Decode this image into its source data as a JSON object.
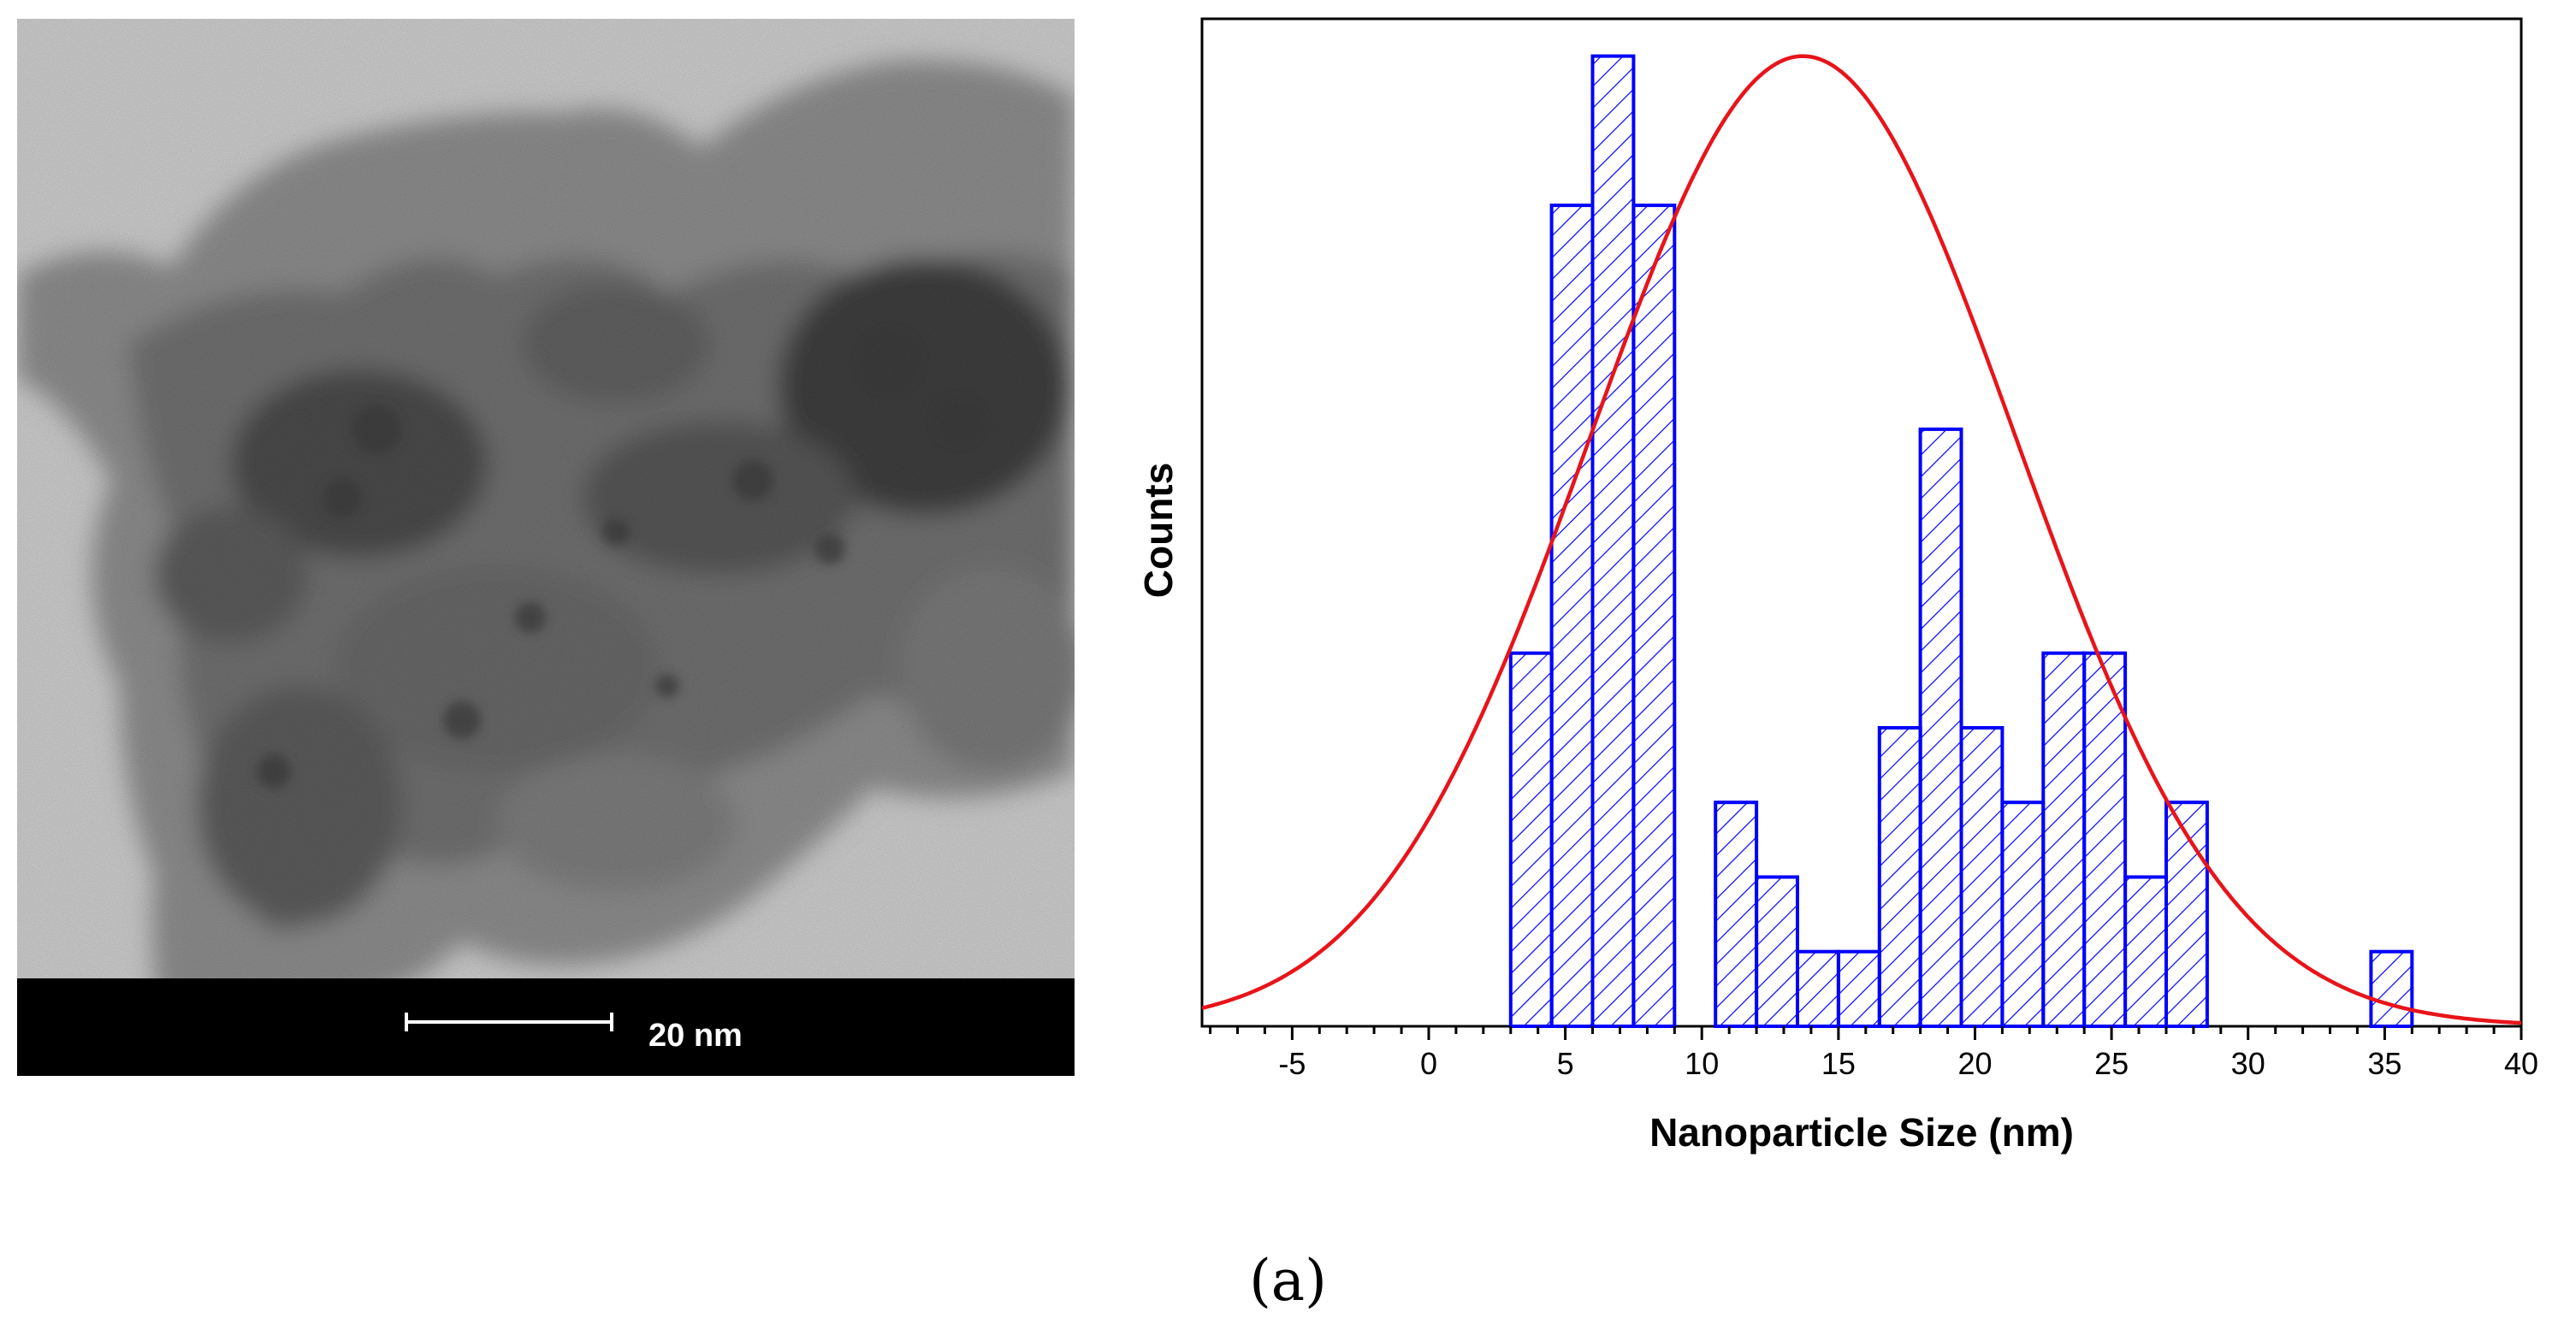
{
  "micrograph": {
    "scale_bar_label": "20 nm"
  },
  "chart_data": {
    "type": "bar",
    "title": "",
    "xlabel": "Nanoparticle Size (nm)",
    "ylabel": "Counts",
    "xlim": [
      -8.3,
      40
    ],
    "ylim": [
      0,
      13.5
    ],
    "xticks": [
      "-5",
      "0",
      "5",
      "10",
      "15",
      "20",
      "25",
      "30",
      "35",
      "40"
    ],
    "yticks_visible": false,
    "grid": false,
    "legend": "none",
    "bars": [
      {
        "x0": 3.0,
        "x1": 4.5,
        "count": 5
      },
      {
        "x0": 4.5,
        "x1": 6.0,
        "count": 11
      },
      {
        "x0": 6.0,
        "x1": 7.5,
        "count": 13
      },
      {
        "x0": 7.5,
        "x1": 9.0,
        "count": 11
      },
      {
        "x0": 10.5,
        "x1": 12.0,
        "count": 3
      },
      {
        "x0": 12.0,
        "x1": 13.5,
        "count": 2
      },
      {
        "x0": 13.5,
        "x1": 15.0,
        "count": 1
      },
      {
        "x0": 15.0,
        "x1": 16.5,
        "count": 1
      },
      {
        "x0": 16.5,
        "x1": 18.0,
        "count": 4
      },
      {
        "x0": 18.0,
        "x1": 19.5,
        "count": 8
      },
      {
        "x0": 19.5,
        "x1": 21.0,
        "count": 4
      },
      {
        "x0": 21.0,
        "x1": 22.5,
        "count": 3
      },
      {
        "x0": 22.5,
        "x1": 24.0,
        "count": 5
      },
      {
        "x0": 24.0,
        "x1": 25.5,
        "count": 5
      },
      {
        "x0": 25.5,
        "x1": 27.0,
        "count": 2
      },
      {
        "x0": 27.0,
        "x1": 28.5,
        "count": 3
      },
      {
        "x0": 34.5,
        "x1": 36.0,
        "count": 1
      }
    ],
    "fit_curve": {
      "type": "gaussian",
      "mean": 13.7,
      "sigma": 7.8,
      "peak": 13.0
    }
  },
  "caption": "(a)",
  "colors": {
    "bar_edge": "#0000ff",
    "bar_hatch": "#0000ff",
    "fit_curve": "#e8141a",
    "axis": "#000000",
    "scale_band": "#000000"
  }
}
